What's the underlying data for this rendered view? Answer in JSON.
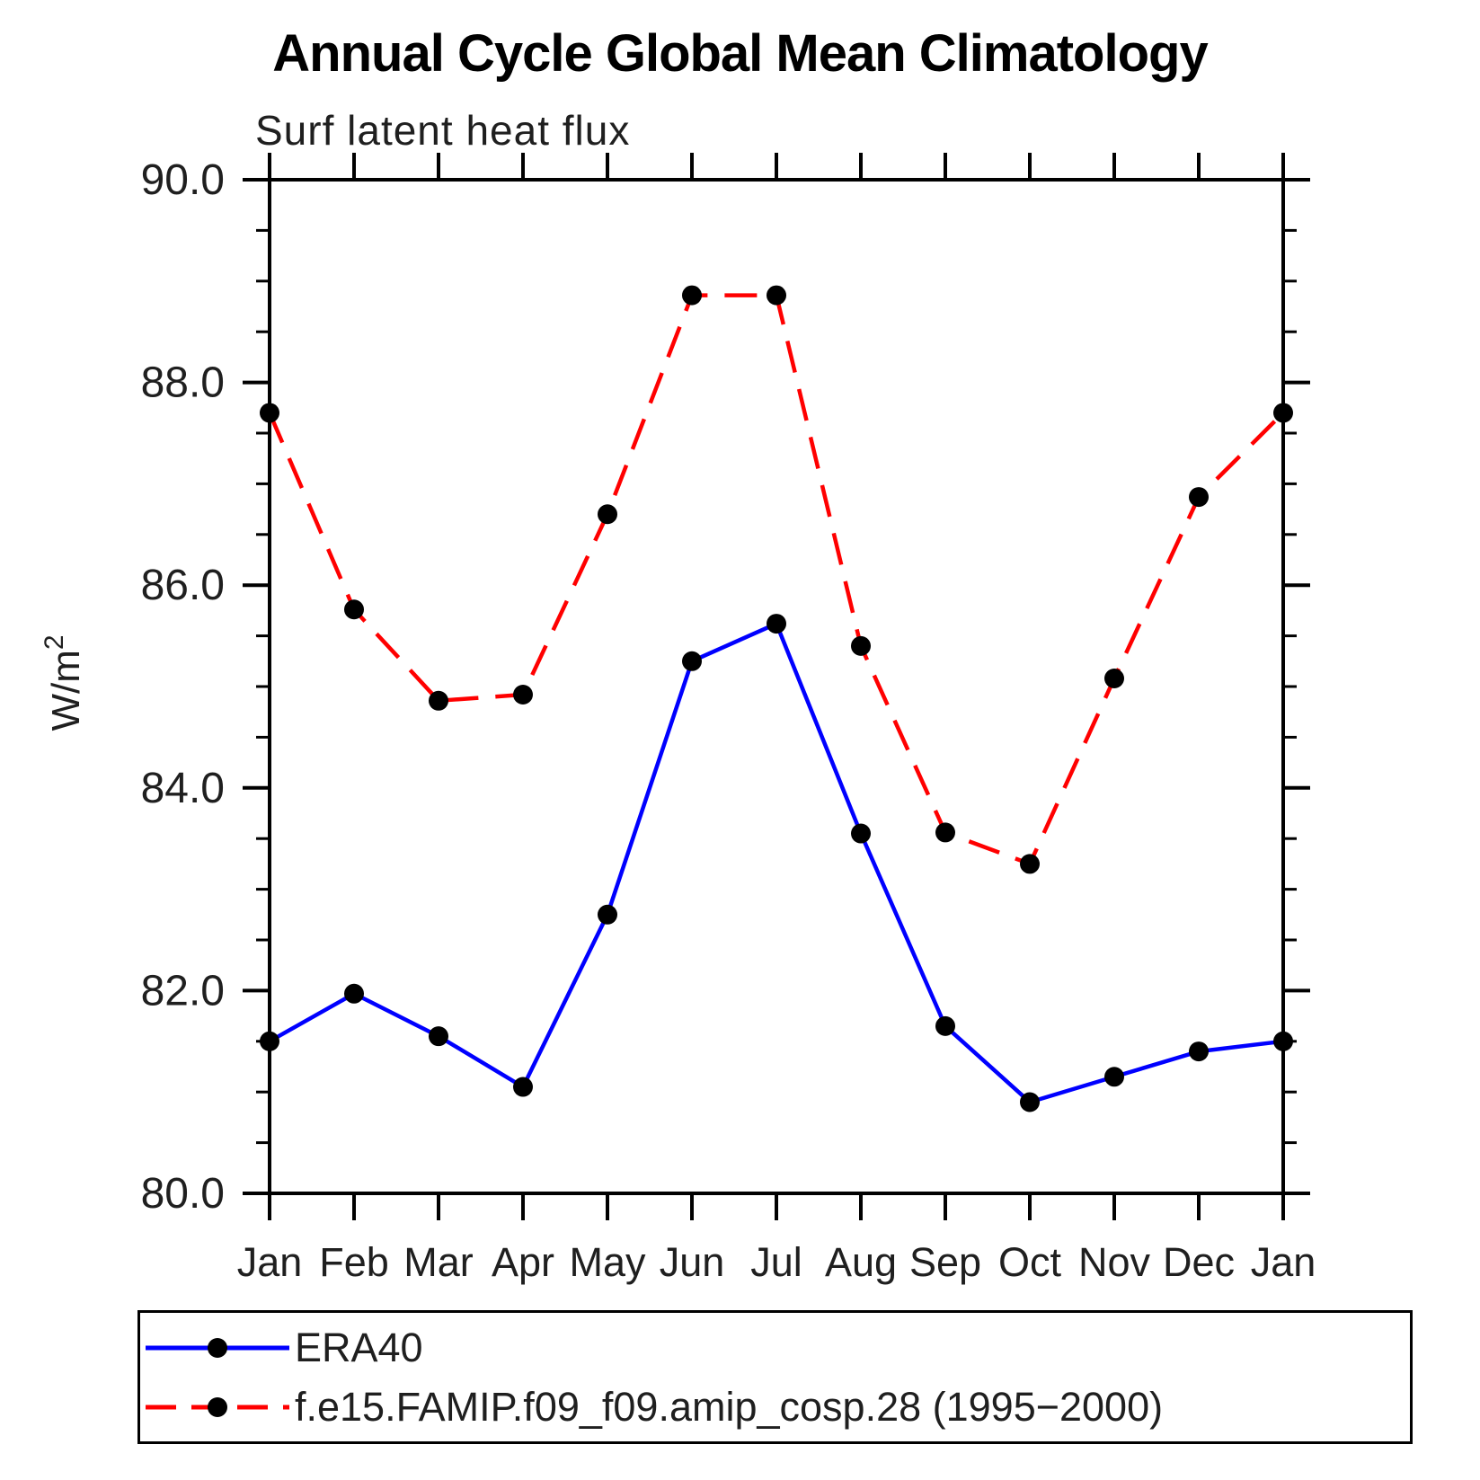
{
  "title": "Annual Cycle Global Mean Climatology",
  "subtitle": "Surf latent heat flux",
  "colors": {
    "background": "#ffffff",
    "axis": "#000000",
    "marker": "#000000",
    "era40_line": "#0000ff",
    "model_line": "#ff0000",
    "text": "#1f1f1f"
  },
  "chart_data": {
    "type": "line",
    "title": "Annual Cycle Global Mean Climatology",
    "subtitle": "Surf latent heat flux",
    "ylabel": "W/m",
    "ylabel_superscript": "2",
    "categories": [
      "Jan",
      "Feb",
      "Mar",
      "Apr",
      "May",
      "Jun",
      "Jul",
      "Aug",
      "Sep",
      "Oct",
      "Nov",
      "Dec",
      "Jan"
    ],
    "series": [
      {
        "name": "ERA40",
        "color": "#0000ff",
        "line_style": "solid",
        "marker": "filled-circle",
        "marker_color": "#000000",
        "values": [
          81.5,
          81.97,
          81.55,
          81.05,
          82.75,
          85.25,
          85.62,
          83.55,
          81.65,
          80.9,
          81.15,
          81.4,
          81.5
        ]
      },
      {
        "name": "f.e15.FAMIP.f09_f09.amip_cosp.28 (1995−2000)",
        "color": "#ff0000",
        "line_style": "dashed",
        "marker": "filled-circle",
        "marker_color": "#000000",
        "values": [
          87.7,
          85.76,
          84.86,
          84.92,
          86.7,
          88.86,
          88.86,
          85.4,
          83.56,
          83.25,
          85.08,
          86.87,
          87.7
        ]
      }
    ],
    "ylim": [
      80.0,
      90.0
    ],
    "yticks": [
      90.0,
      88.0,
      86.0,
      84.0,
      82.0,
      80.0
    ],
    "ytick_labels": [
      "90.0",
      "88.0",
      "86.0",
      "84.0",
      "82.0",
      "80.0"
    ],
    "y_minor_step": 0.5,
    "grid": false,
    "legend_position": "bottom"
  }
}
